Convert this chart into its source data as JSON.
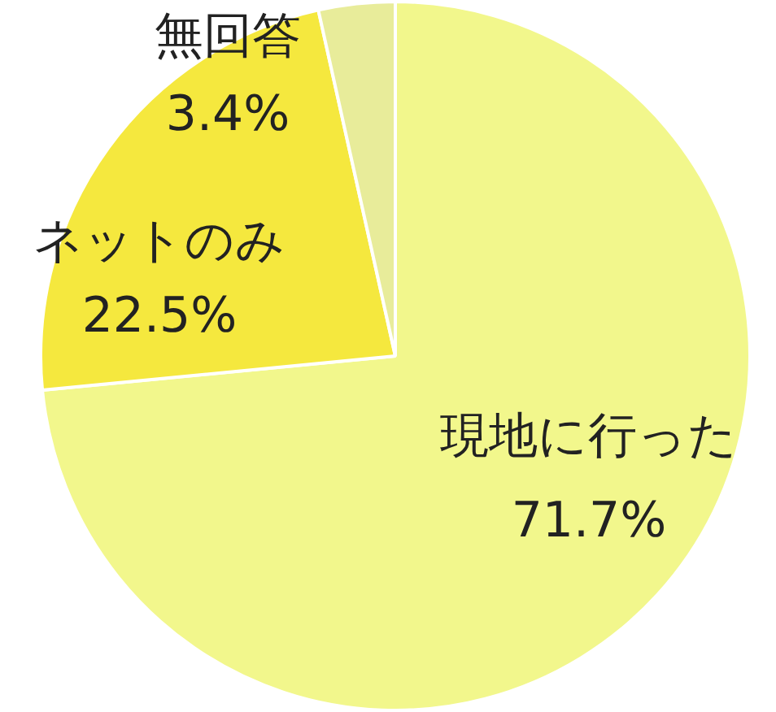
{
  "chart_data": {
    "type": "pie",
    "categories": [
      "現地に行った",
      "ネットのみ",
      "無回答"
    ],
    "values": [
      71.7,
      22.5,
      3.4
    ],
    "colors": [
      "#f2f78c",
      "#f5e83e",
      "#e8ec9a"
    ],
    "value_labels": [
      "71.7%",
      "22.5%",
      "3.4%"
    ],
    "legend": false
  }
}
